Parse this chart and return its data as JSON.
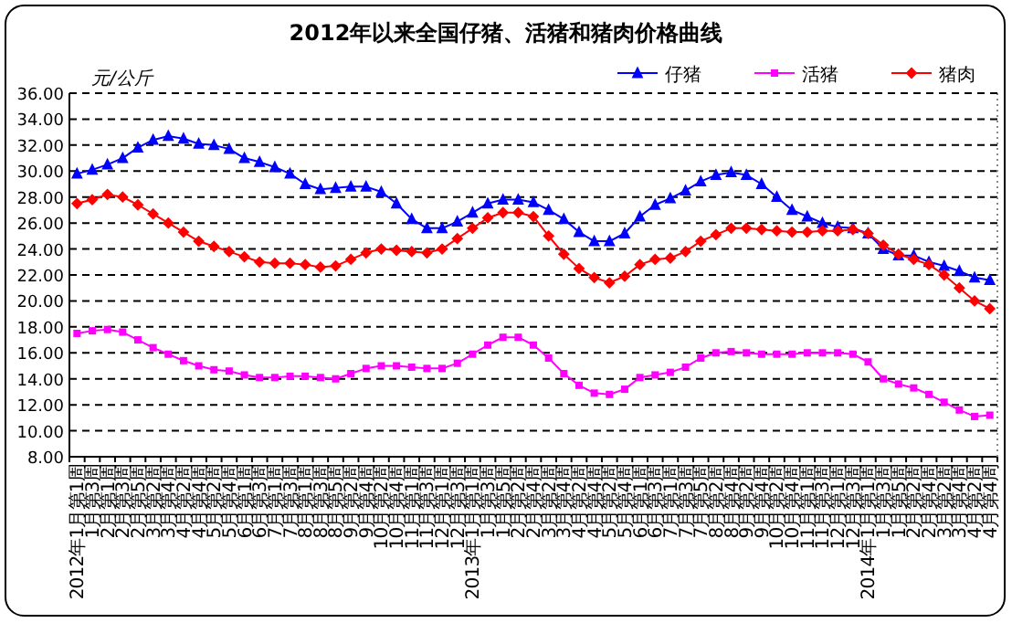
{
  "chart_data": {
    "type": "line",
    "title": "2012年以来全国仔猪、活猪和猪肉价格曲线",
    "ylabel": "元/公斤",
    "categories": [
      "2012年1月第1周",
      "1月第3周",
      "2月第1周",
      "2月第3周",
      "2月第5周",
      "3月第2周",
      "3月第4周",
      "4月第2周",
      "4月第4周",
      "5月第2周",
      "5月第4周",
      "6月第1周",
      "6月第3周",
      "7月第1周",
      "7月第3周",
      "8月第1周",
      "8月第3周",
      "8月第5周",
      "9月第2周",
      "9月第4周",
      "10月第2周",
      "10月第4周",
      "11月第1周",
      "11月第3周",
      "12月第1周",
      "12月第3周",
      "2013年1月第1周",
      "1月第3周",
      "1月第5周",
      "2月第2周",
      "2月第4周",
      "3月第2周",
      "3月第4周",
      "4月第2周",
      "4月第4周",
      "5月第2周",
      "5月第4周",
      "6月第1周",
      "6月第3周",
      "7月第1周",
      "7月第3周",
      "7月第5周",
      "8月第2周",
      "8月第4周",
      "9月第2周",
      "9月第4周",
      "10月第2周",
      "10月第4周",
      "11月第1周",
      "11月第3周",
      "12月第1周",
      "12月第3周",
      "2014年1月第1周",
      "1月第3周",
      "1月第5周",
      "2月第2周",
      "2月第4周",
      "3月第2周",
      "3月第4周",
      "4月第2周",
      "4月第4周"
    ],
    "series": [
      {
        "name": "仔猪",
        "color": "#0000ff",
        "marker": "triangle",
        "values": [
          29.8,
          30.1,
          30.5,
          31.0,
          31.8,
          32.4,
          32.7,
          32.5,
          32.1,
          32.0,
          31.7,
          31.0,
          30.7,
          30.3,
          29.8,
          29.0,
          28.6,
          28.7,
          28.8,
          28.8,
          28.4,
          27.5,
          26.3,
          25.6,
          25.6,
          26.1,
          26.8,
          27.5,
          27.8,
          27.8,
          27.6,
          27.0,
          26.3,
          25.3,
          24.6,
          24.6,
          25.2,
          26.5,
          27.4,
          27.9,
          28.5,
          29.2,
          29.7,
          29.9,
          29.7,
          29.0,
          28.0,
          27.0,
          26.5,
          26.0,
          25.7,
          25.6,
          25.2,
          24.0,
          23.5,
          23.5,
          23.0,
          22.7,
          22.3,
          21.8,
          21.6
        ]
      },
      {
        "name": "活猪",
        "color": "#ff00ff",
        "marker": "square",
        "values": [
          17.5,
          17.7,
          17.8,
          17.6,
          17.0,
          16.4,
          15.9,
          15.4,
          15.0,
          14.7,
          14.6,
          14.3,
          14.1,
          14.1,
          14.2,
          14.2,
          14.1,
          14.0,
          14.4,
          14.8,
          15.0,
          15.0,
          14.9,
          14.8,
          14.8,
          15.2,
          15.9,
          16.6,
          17.2,
          17.2,
          16.6,
          15.6,
          14.4,
          13.5,
          12.9,
          12.8,
          13.2,
          14.1,
          14.3,
          14.5,
          14.9,
          15.6,
          16.0,
          16.1,
          16.0,
          15.9,
          15.9,
          15.9,
          16.0,
          16.0,
          16.0,
          15.9,
          15.3,
          14.0,
          13.6,
          13.3,
          12.8,
          12.2,
          11.6,
          11.1,
          11.2
        ]
      },
      {
        "name": "猪肉",
        "color": "#ff0000",
        "marker": "diamond",
        "values": [
          27.5,
          27.8,
          28.2,
          28.0,
          27.4,
          26.7,
          26.0,
          25.3,
          24.6,
          24.2,
          23.8,
          23.4,
          23.0,
          22.9,
          22.9,
          22.8,
          22.6,
          22.7,
          23.2,
          23.7,
          24.0,
          23.9,
          23.8,
          23.7,
          24.0,
          24.8,
          25.6,
          26.4,
          26.8,
          26.8,
          26.5,
          25.0,
          23.6,
          22.5,
          21.8,
          21.4,
          21.9,
          22.8,
          23.2,
          23.3,
          23.8,
          24.6,
          25.1,
          25.6,
          25.6,
          25.5,
          25.4,
          25.3,
          25.3,
          25.4,
          25.4,
          25.5,
          25.2,
          24.3,
          23.6,
          23.2,
          22.8,
          22.0,
          21.0,
          20.0,
          19.4
        ]
      }
    ],
    "ylim": [
      8,
      36
    ],
    "yticks": [
      {
        "value": 8,
        "label": "8.00"
      },
      {
        "value": 10,
        "label": "10.00"
      },
      {
        "value": 12,
        "label": "12.00"
      },
      {
        "value": 14,
        "label": "14.00"
      },
      {
        "value": 16,
        "label": "16.00"
      },
      {
        "value": 18,
        "label": "18.00"
      },
      {
        "value": 20,
        "label": "20.00"
      },
      {
        "value": 22,
        "label": "22.00"
      },
      {
        "value": 24,
        "label": "24.00"
      },
      {
        "value": 26,
        "label": "26.00"
      },
      {
        "value": 28,
        "label": "28.00"
      },
      {
        "value": 30,
        "label": "30.00"
      },
      {
        "value": 32,
        "label": "32.00"
      },
      {
        "value": 34,
        "label": "34.00"
      },
      {
        "value": 36,
        "label": "36.00"
      }
    ],
    "grid": "y",
    "legend": "top right",
    "line_style": "solid"
  }
}
